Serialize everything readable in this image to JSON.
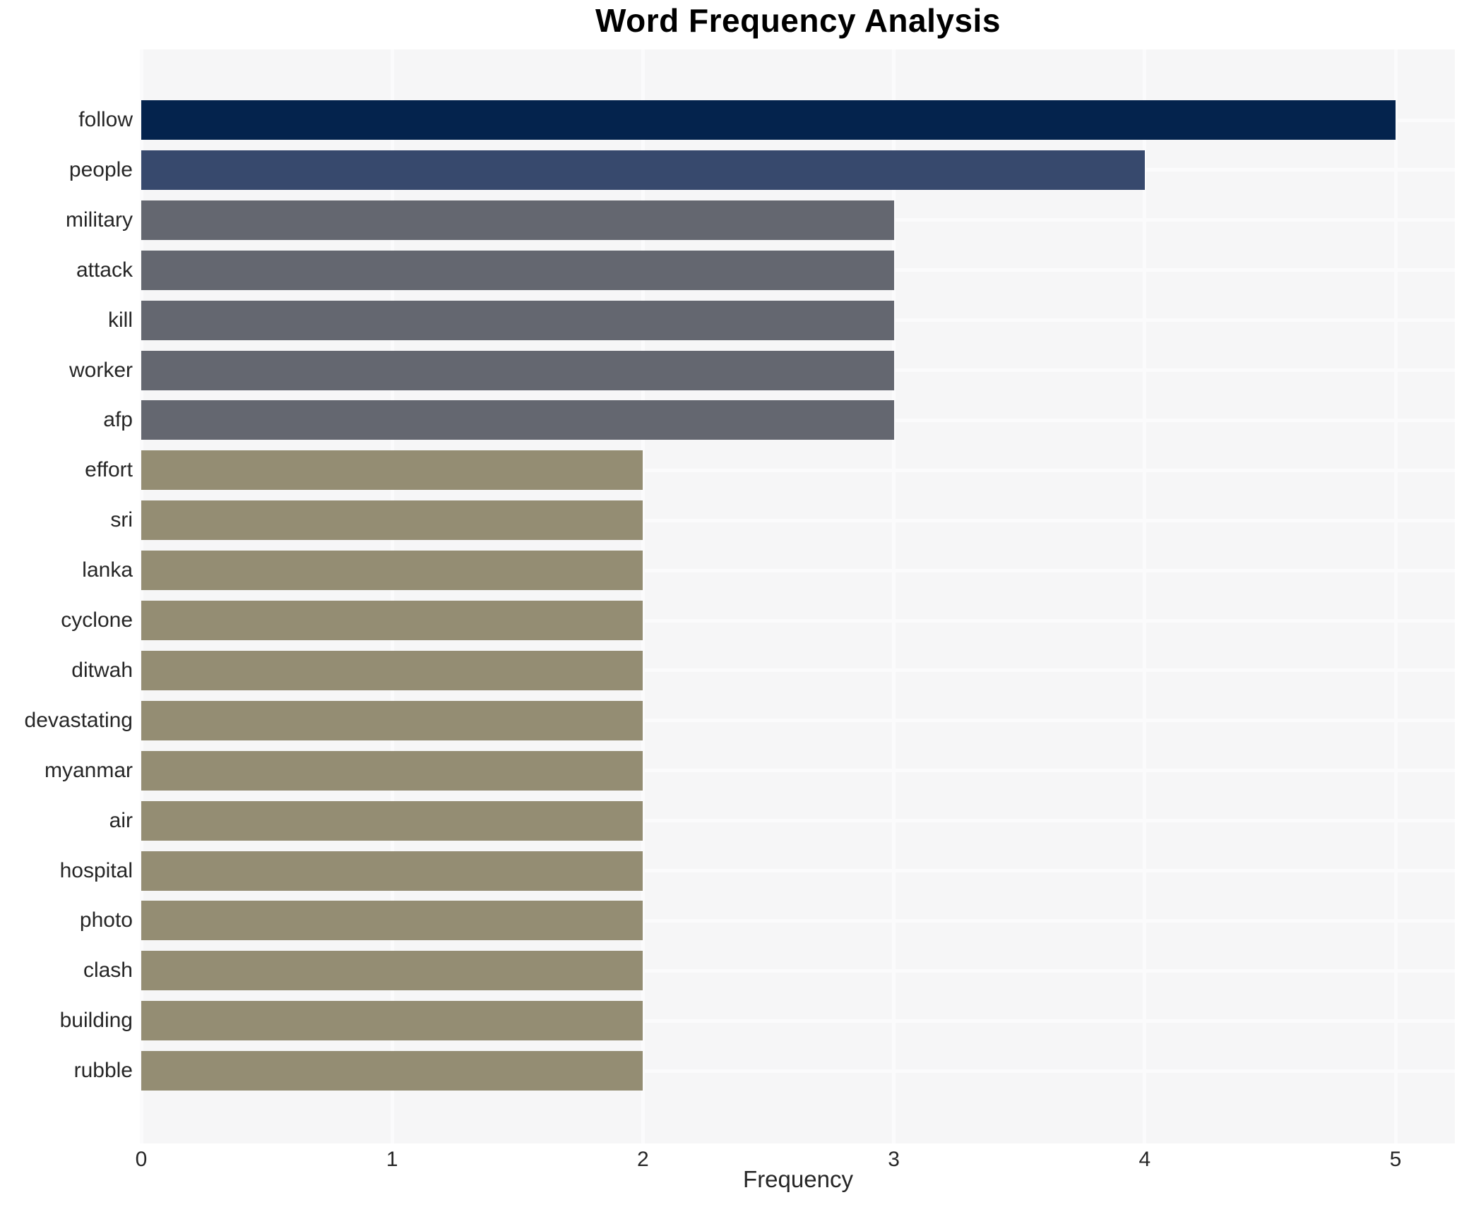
{
  "chart_data": {
    "type": "bar",
    "orientation": "horizontal",
    "title": "Word Frequency Analysis",
    "xlabel": "Frequency",
    "ylabel": "",
    "categories": [
      "follow",
      "people",
      "military",
      "attack",
      "kill",
      "worker",
      "afp",
      "effort",
      "sri",
      "lanka",
      "cyclone",
      "ditwah",
      "devastating",
      "myanmar",
      "air",
      "hospital",
      "photo",
      "clash",
      "building",
      "rubble"
    ],
    "values": [
      5,
      4,
      3,
      3,
      3,
      3,
      3,
      2,
      2,
      2,
      2,
      2,
      2,
      2,
      2,
      2,
      2,
      2,
      2,
      2
    ],
    "bar_colors": [
      "#04234d",
      "#37496d",
      "#646770",
      "#646770",
      "#646770",
      "#646770",
      "#646770",
      "#948d73",
      "#948d73",
      "#948d73",
      "#948d73",
      "#948d73",
      "#948d73",
      "#948d73",
      "#948d73",
      "#948d73",
      "#948d73",
      "#948d73",
      "#948d73",
      "#948d73"
    ],
    "xticks": [
      "0",
      "1",
      "2",
      "3",
      "4",
      "5"
    ],
    "xlim": [
      0,
      5.236
    ],
    "grid": true,
    "legend": false,
    "colors": {
      "plot_background": "#f6f6f7",
      "gridline": "#fbfbfc",
      "title_text": "#000000",
      "axis_text": "#262626"
    }
  }
}
